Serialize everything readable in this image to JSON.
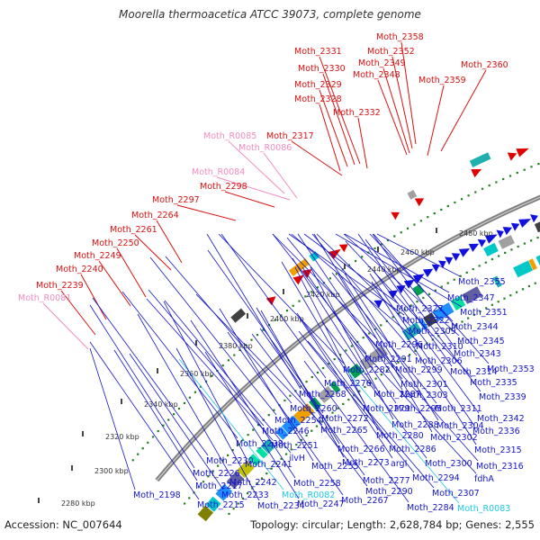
{
  "title": "Moorella thermoacetica ATCC 39073, complete genome",
  "footer": {
    "accession": "Accession: NC_007644",
    "summary": "Topology: circular; Length: 2,628,784 bp; Genes: 2,555"
  },
  "colors": {
    "upper_label": "#d81010",
    "upper_rna_label": "#f08cc0",
    "lower_label": "#1414c8",
    "lower_rna_label": "#1ec8e6",
    "backbone": "#808080",
    "cds_arrow_outer": "#e00000",
    "cds_arrow_inner": "#1010e0",
    "gc_dots": "#208020"
  },
  "scale_labels": [
    "2280 kbp",
    "2300 kbp",
    "2320 kbp",
    "2340 kbp",
    "2360 kbp",
    "2380 kbp",
    "2400 kbp",
    "2420 kbp",
    "2440 kbp",
    "2460 kbp",
    "2480 kbp"
  ],
  "upper_labels": [
    "Moth_2358",
    "Moth_2352",
    "Moth_2331",
    "Moth_2349",
    "Moth_2360",
    "Moth_2330",
    "Moth_2348",
    "Moth_2329",
    "Moth_2359",
    "Moth_2328",
    "Moth_2332",
    "Moth_R0085",
    "Moth_2317",
    "Moth_R0086",
    "Moth_R0084",
    "Moth_2298",
    "Moth_2297",
    "Moth_2264",
    "Moth_2261",
    "Moth_2250",
    "Moth_2249",
    "Moth_2240",
    "Moth_2239",
    "Moth_R0081"
  ],
  "lower_labels": [
    "Moth_2355",
    "Moth_2327",
    "Moth_2347",
    "Moth_2322",
    "Moth_2351",
    "Moth_2344",
    "Moth_2309",
    "Moth_2296",
    "Moth_2345",
    "Moth_2310",
    "Moth_2343",
    "Moth_2291",
    "Moth_2306",
    "Moth_2353",
    "Moth_2282",
    "Moth_2299",
    "Moth_2314",
    "Moth_2276",
    "Moth_2301",
    "Moth_2335",
    "Moth_2287",
    "Moth_2268",
    "Moth_2303",
    "Moth_2339",
    "Moth_2260",
    "Moth_2279",
    "Moth_2295",
    "Moth_2311",
    "Moth_2272",
    "Moth_2254",
    "Moth_2288",
    "Moth_2304",
    "Moth_2342",
    "Moth_2246",
    "Moth_2265",
    "Moth_2280",
    "Moth_2302",
    "Moth_2336",
    "Moth_2238",
    "Moth_2251",
    "Moth_2266",
    "Moth_2286",
    "Moth_2315",
    "Moth_2230",
    "ilvH",
    "Moth_2273",
    "argI",
    "Moth_2300",
    "Moth_2316",
    "Moth_2226",
    "Moth_2241",
    "Moth_2255",
    "Moth_2277",
    "Moth_2294",
    "fdhA",
    "Moth_2217",
    "Moth_2242",
    "Moth_2258",
    "Moth_2290",
    "Moth_2307",
    "Moth_2198",
    "Moth_2233",
    "Moth_R0082",
    "Moth_2267",
    "Moth_2215",
    "Moth_2234",
    "Moth_2247",
    "Moth_2284",
    "Moth_R0083"
  ]
}
